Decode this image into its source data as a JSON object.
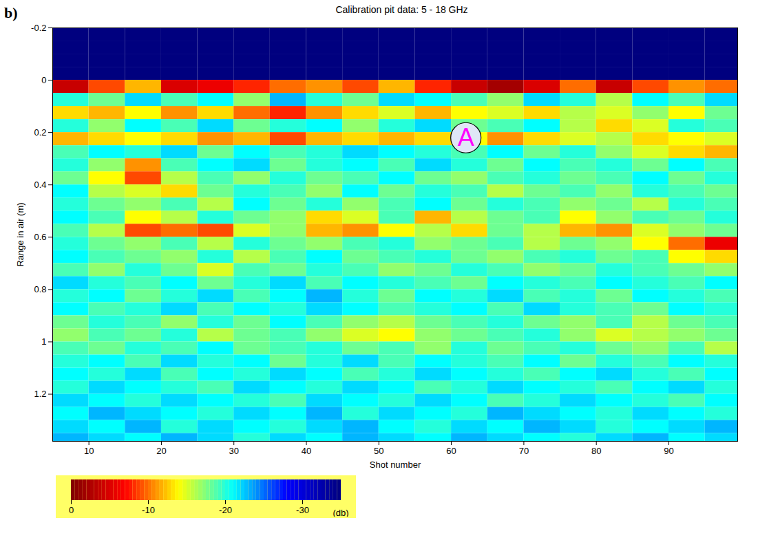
{
  "chart_data": {
    "type": "heatmap",
    "panel_label": "b)",
    "title": "Calibration pit data: 5 - 18 GHz",
    "x_label": "Shot number",
    "y_label": "Range in air (m)",
    "xlim": [
      5,
      99.5
    ],
    "xticks": [
      10,
      20,
      30,
      40,
      50,
      60,
      70,
      80,
      90
    ],
    "ylim": [
      -0.2,
      1.38
    ],
    "yticks": [
      -0.2,
      0,
      0.2,
      0.4,
      0.6,
      0.8,
      1,
      1.2
    ],
    "x_edges": [
      5,
      10,
      15,
      20,
      25,
      30,
      35,
      40,
      45,
      50,
      55,
      60,
      65,
      70,
      75,
      80,
      85,
      90,
      95,
      99.5
    ],
    "y_edges": [
      -0.2,
      -0.15,
      -0.1,
      -0.05,
      0,
      0.05,
      0.1,
      0.15,
      0.2,
      0.25,
      0.3,
      0.35,
      0.4,
      0.45,
      0.5,
      0.55,
      0.6,
      0.65,
      0.7,
      0.75,
      0.8,
      0.85,
      0.9,
      0.95,
      1,
      1.05,
      1.1,
      1.15,
      1.2,
      1.25,
      1.3,
      1.35,
      1.4
    ],
    "cells": [
      [
        -35,
        -35,
        -35,
        -35,
        -35,
        -35,
        -35,
        -35,
        -35,
        -35,
        -35,
        -35,
        -35,
        -35,
        -35,
        -35,
        -35,
        -35,
        -35
      ],
      [
        -35,
        -35,
        -35,
        -35,
        -35,
        -35,
        -35,
        -35,
        -35,
        -35,
        -35,
        -35,
        -35,
        -35,
        -35,
        -35,
        -35,
        -35,
        -35
      ],
      [
        -35,
        -35,
        -35,
        -35,
        -35,
        -35,
        -35,
        -35,
        -35,
        -35,
        -35,
        -35,
        -35,
        -35,
        -35,
        -35,
        -35,
        -35,
        -35
      ],
      [
        -35,
        -35,
        -35,
        -35,
        -35,
        -35,
        -35,
        -35,
        -35,
        -35,
        -35,
        -35,
        -35,
        -35,
        -35,
        -35,
        -35,
        -35,
        -35
      ],
      [
        -4,
        -9,
        -12,
        -5,
        -6,
        -8,
        -10,
        -11,
        -9,
        -12,
        -8,
        -4,
        -2,
        -5,
        -10,
        -4,
        -9,
        -11,
        -10
      ],
      [
        -20,
        -18,
        -22,
        -19,
        -21,
        -17,
        -23,
        -20,
        -18,
        -22,
        -21,
        -19,
        -17,
        -22,
        -20,
        -16,
        -21,
        -19,
        -22
      ],
      [
        -13,
        -12,
        -14,
        -11,
        -13,
        -10,
        -8,
        -11,
        -13,
        -15,
        -12,
        -14,
        -15,
        -13,
        -16,
        -15,
        -17,
        -14,
        -18
      ],
      [
        -20,
        -17,
        -21,
        -19,
        -22,
        -18,
        -20,
        -21,
        -17,
        -20,
        -22,
        -18,
        -19,
        -21,
        -16,
        -13,
        -15,
        -20,
        -19
      ],
      [
        -12,
        -13,
        -14,
        -13,
        -11,
        -12,
        -9,
        -12,
        -13,
        -12,
        -13,
        -14,
        -11,
        -13,
        -15,
        -16,
        -13,
        -14,
        -15
      ],
      [
        -19,
        -21,
        -20,
        -22,
        -18,
        -21,
        -19,
        -20,
        -22,
        -21,
        -20,
        -19,
        -21,
        -18,
        -20,
        -17,
        -15,
        -13,
        -12
      ],
      [
        -20,
        -17,
        -11,
        -19,
        -21,
        -22,
        -18,
        -20,
        -21,
        -19,
        -22,
        -20,
        -18,
        -21,
        -19,
        -20,
        -18,
        -21,
        -19
      ],
      [
        -18,
        -14,
        -9,
        -16,
        -19,
        -17,
        -20,
        -18,
        -19,
        -21,
        -18,
        -17,
        -19,
        -20,
        -18,
        -19,
        -21,
        -18,
        -20
      ],
      [
        -21,
        -16,
        -15,
        -13,
        -18,
        -20,
        -19,
        -17,
        -21,
        -18,
        -20,
        -19,
        -16,
        -18,
        -19,
        -17,
        -20,
        -19,
        -18
      ],
      [
        -20,
        -18,
        -17,
        -19,
        -16,
        -21,
        -18,
        -20,
        -17,
        -19,
        -21,
        -18,
        -20,
        -19,
        -17,
        -18,
        -16,
        -20,
        -19
      ],
      [
        -21,
        -19,
        -14,
        -16,
        -20,
        -18,
        -17,
        -13,
        -15,
        -19,
        -12,
        -16,
        -18,
        -19,
        -14,
        -17,
        -19,
        -18,
        -20
      ],
      [
        -19,
        -16,
        -9,
        -10,
        -9,
        -15,
        -17,
        -12,
        -11,
        -14,
        -16,
        -13,
        -18,
        -16,
        -12,
        -11,
        -15,
        -17,
        -18
      ],
      [
        -20,
        -18,
        -17,
        -19,
        -16,
        -20,
        -18,
        -17,
        -19,
        -20,
        -17,
        -18,
        -19,
        -16,
        -18,
        -17,
        -14,
        -10,
        -6
      ],
      [
        -21,
        -19,
        -18,
        -17,
        -20,
        -16,
        -19,
        -21,
        -18,
        -19,
        -20,
        -18,
        -17,
        -19,
        -20,
        -18,
        -19,
        -14,
        -13
      ],
      [
        -19,
        -17,
        -20,
        -18,
        -15,
        -19,
        -18,
        -20,
        -19,
        -17,
        -18,
        -20,
        -19,
        -17,
        -18,
        -20,
        -19,
        -18,
        -17
      ],
      [
        -22,
        -20,
        -19,
        -21,
        -18,
        -20,
        -22,
        -19,
        -21,
        -20,
        -19,
        -18,
        -21,
        -20,
        -19,
        -21,
        -20,
        -19,
        -21
      ],
      [
        -20,
        -21,
        -18,
        -20,
        -22,
        -19,
        -21,
        -23,
        -20,
        -18,
        -21,
        -20,
        -22,
        -19,
        -20,
        -18,
        -21,
        -20,
        -19
      ],
      [
        -21,
        -19,
        -20,
        -22,
        -19,
        -21,
        -20,
        -22,
        -21,
        -19,
        -20,
        -21,
        -19,
        -22,
        -20,
        -19,
        -18,
        -21,
        -20
      ],
      [
        -18,
        -20,
        -19,
        -17,
        -20,
        -18,
        -21,
        -19,
        -17,
        -16,
        -18,
        -19,
        -20,
        -18,
        -17,
        -19,
        -16,
        -18,
        -19
      ],
      [
        -17,
        -19,
        -18,
        -20,
        -16,
        -18,
        -19,
        -17,
        -15,
        -14,
        -17,
        -18,
        -19,
        -20,
        -17,
        -15,
        -16,
        -17,
        -18
      ],
      [
        -19,
        -18,
        -20,
        -19,
        -21,
        -18,
        -19,
        -20,
        -18,
        -19,
        -17,
        -20,
        -18,
        -19,
        -20,
        -18,
        -17,
        -19,
        -16
      ],
      [
        -20,
        -21,
        -19,
        -22,
        -20,
        -21,
        -18,
        -20,
        -22,
        -19,
        -21,
        -20,
        -19,
        -21,
        -18,
        -20,
        -19,
        -21,
        -20
      ],
      [
        -21,
        -20,
        -22,
        -19,
        -21,
        -20,
        -22,
        -21,
        -19,
        -20,
        -22,
        -21,
        -20,
        -19,
        -21,
        -22,
        -20,
        -19,
        -21
      ],
      [
        -20,
        -22,
        -21,
        -20,
        -19,
        -22,
        -21,
        -20,
        -22,
        -21,
        -19,
        -20,
        -22,
        -21,
        -20,
        -19,
        -21,
        -22,
        -20
      ],
      [
        -22,
        -21,
        -20,
        -22,
        -21,
        -20,
        -19,
        -22,
        -21,
        -20,
        -22,
        -21,
        -19,
        -20,
        -22,
        -21,
        -20,
        -19,
        -21
      ],
      [
        -21,
        -23,
        -22,
        -21,
        -20,
        -22,
        -21,
        -23,
        -20,
        -22,
        -21,
        -20,
        -23,
        -22,
        -21,
        -20,
        -22,
        -21,
        -20
      ],
      [
        -22,
        -21,
        -23,
        -20,
        -22,
        -21,
        -20,
        -22,
        -23,
        -21,
        -20,
        -22,
        -21,
        -23,
        -22,
        -20,
        -21,
        -22,
        -23
      ],
      [
        -23,
        -22,
        -21,
        -23,
        -22,
        -20,
        -22,
        -21,
        -23,
        -22,
        -21,
        -23,
        -22,
        -21,
        -20,
        -22,
        -23,
        -21,
        -22
      ]
    ],
    "colorbar": {
      "range": [
        0,
        -35
      ],
      "ticks": [
        0,
        -10,
        -20,
        -30
      ],
      "label": "(db)"
    },
    "annotations": [
      {
        "text": "A",
        "x": 62,
        "y": 0.22
      }
    ]
  }
}
